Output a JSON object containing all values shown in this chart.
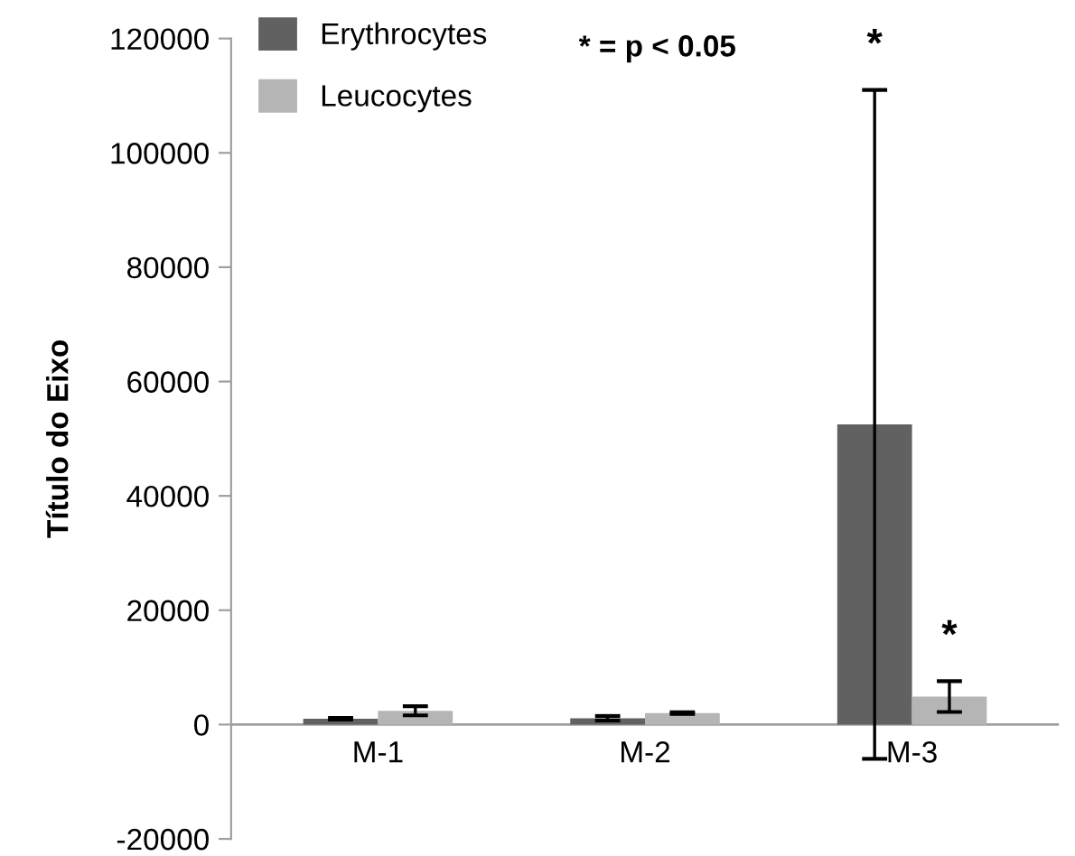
{
  "chart_data": {
    "type": "bar",
    "ylabel": "Título do Eixo",
    "categories": [
      "M-1",
      "M-2",
      "M-3"
    ],
    "series": [
      {
        "name": "Erythrocytes",
        "color": "#616161",
        "values": [
          1000,
          1100,
          52500
        ],
        "errors": [
          150,
          400,
          58500
        ]
      },
      {
        "name": "Leucocytes",
        "color": "#b5b5b5",
        "values": [
          2400,
          2000,
          4900
        ],
        "errors": [
          800,
          150,
          2700
        ]
      }
    ],
    "ylim": [
      -20000,
      120000
    ],
    "yticks": [
      -20000,
      0,
      20000,
      40000,
      60000,
      80000,
      100000,
      120000
    ],
    "grid": false,
    "legend": "top left",
    "annotations": [
      "* = p < 0.05",
      "*",
      "*"
    ]
  }
}
